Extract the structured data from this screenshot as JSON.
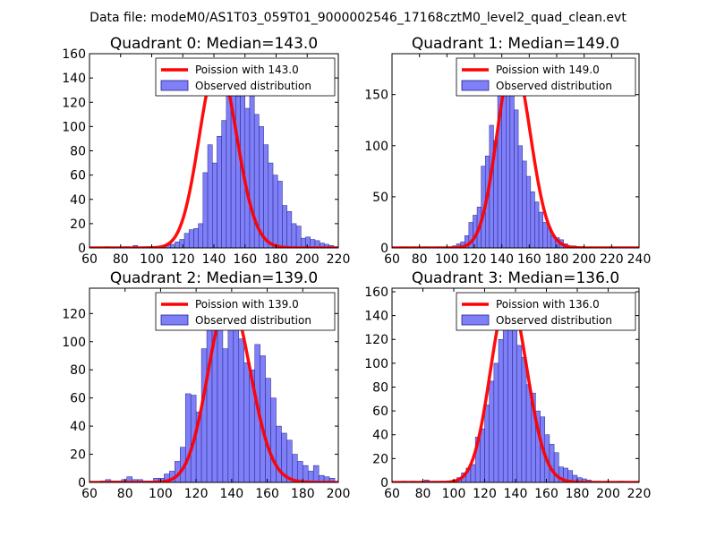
{
  "figure": {
    "suptitle": "Data file: modeM0/AS1T03_059T01_9000002546_17168cztM0_level2_quad_clean.evt"
  },
  "colors": {
    "bar_fill": "#7f7ff7",
    "bar_edge": "#23238a",
    "curve": "#ff0000"
  },
  "chart_data": [
    {
      "type": "bar",
      "title": "Quadrant 0: Median=143.0",
      "xlim": [
        60,
        220
      ],
      "ylim": [
        0,
        160
      ],
      "xticks": [
        60,
        80,
        100,
        120,
        140,
        160,
        180,
        200,
        220
      ],
      "yticks": [
        0,
        20,
        40,
        60,
        80,
        100,
        120,
        140,
        160
      ],
      "legend": {
        "placement": "top-right",
        "line_label": "Poission with 143.0",
        "bar_label": "Observed distribution"
      },
      "poisson_mean": 143.0,
      "poisson_peak": 153,
      "bin_start": 70,
      "bin_width": 3,
      "values": [
        1,
        0,
        0,
        0,
        1,
        0,
        2,
        0,
        1,
        1,
        1,
        0,
        1,
        3,
        3,
        5,
        7,
        12,
        15,
        16,
        20,
        62,
        85,
        70,
        92,
        105,
        130,
        140,
        125,
        150,
        115,
        140,
        110,
        100,
        85,
        70,
        60,
        55,
        35,
        30,
        20,
        18,
        8,
        9,
        7,
        6,
        4,
        3,
        2,
        1,
        1
      ]
    },
    {
      "type": "bar",
      "title": "Quadrant 1: Median=149.0",
      "xlim": [
        60,
        240
      ],
      "ylim": [
        0,
        190
      ],
      "xticks": [
        60,
        80,
        100,
        120,
        140,
        160,
        180,
        200,
        220,
        240
      ],
      "yticks": [
        0,
        50,
        100,
        150
      ],
      "legend": {
        "placement": "top-right",
        "line_label": "Poission with 149.0",
        "bar_label": "Observed distribution"
      },
      "poisson_mean": 149.0,
      "poisson_peak": 183,
      "bin_start": 65,
      "bin_width": 3,
      "values": [
        1,
        1,
        0,
        1,
        0,
        0,
        1,
        0,
        0,
        1,
        0,
        1,
        1,
        2,
        4,
        6,
        12,
        25,
        32,
        40,
        80,
        90,
        120,
        105,
        150,
        160,
        172,
        150,
        135,
        100,
        85,
        70,
        55,
        45,
        35,
        25,
        20,
        12,
        10,
        8,
        4,
        2,
        2,
        1,
        1,
        0,
        1,
        0,
        0,
        0,
        0,
        1
      ]
    },
    {
      "type": "bar",
      "title": "Quadrant 2: Median=139.0",
      "xlim": [
        60,
        200
      ],
      "ylim": [
        0,
        138
      ],
      "xticks": [
        60,
        80,
        100,
        120,
        140,
        160,
        180,
        200
      ],
      "yticks": [
        0,
        20,
        40,
        60,
        80,
        100,
        120
      ],
      "legend": {
        "placement": "top-right",
        "line_label": "Poission with 139.0",
        "bar_label": "Observed distribution"
      },
      "poisson_mean": 139.0,
      "poisson_peak": 131,
      "bin_start": 66,
      "bin_width": 3,
      "values": [
        1,
        2,
        1,
        1,
        2,
        4,
        2,
        2,
        1,
        1,
        3,
        3,
        6,
        8,
        15,
        25,
        63,
        62,
        50,
        95,
        110,
        115,
        120,
        95,
        112,
        112,
        102,
        85,
        80,
        98,
        90,
        74,
        60,
        40,
        35,
        30,
        20,
        15,
        12,
        8,
        12,
        5,
        4,
        3
      ]
    },
    {
      "type": "bar",
      "title": "Quadrant 3: Median=136.0",
      "xlim": [
        60,
        220
      ],
      "ylim": [
        0,
        163
      ],
      "xticks": [
        60,
        80,
        100,
        120,
        140,
        160,
        180,
        200,
        220
      ],
      "yticks": [
        0,
        20,
        40,
        60,
        80,
        100,
        120,
        140,
        160
      ],
      "legend": {
        "placement": "top-right",
        "line_label": "Poission with 136.0",
        "bar_label": "Observed distribution"
      },
      "poisson_mean": 136.0,
      "poisson_peak": 158,
      "bin_start": 66,
      "bin_width": 3,
      "values": [
        1,
        0,
        1,
        0,
        1,
        2,
        1,
        1,
        1,
        0,
        1,
        2,
        4,
        8,
        12,
        15,
        38,
        45,
        65,
        85,
        100,
        120,
        140,
        150,
        135,
        115,
        105,
        82,
        75,
        60,
        55,
        40,
        32,
        25,
        13,
        12,
        10,
        6,
        4,
        3,
        2,
        1,
        1,
        0,
        1,
        0,
        0,
        1
      ]
    }
  ]
}
